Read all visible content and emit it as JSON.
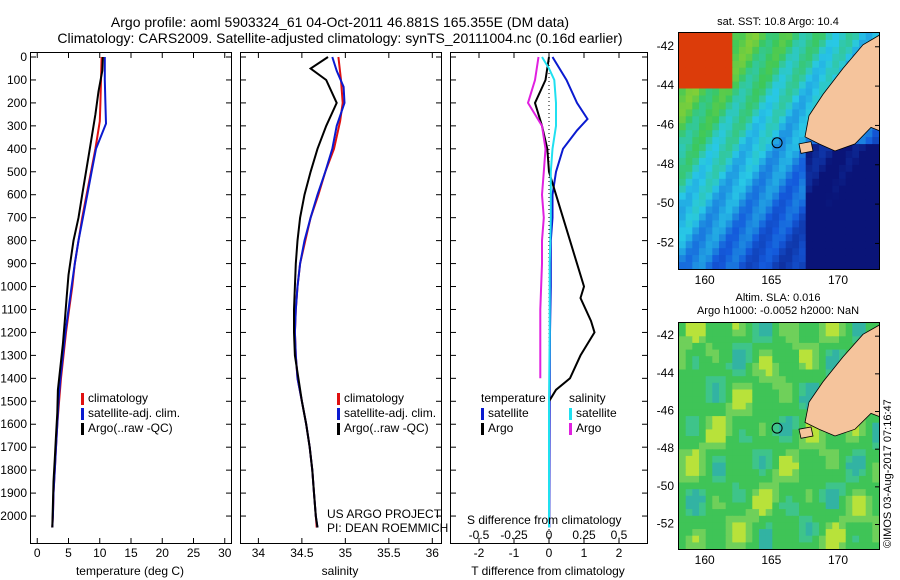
{
  "title": {
    "line1": "Argo profile: aoml 5903324_61 04-Oct-2011 46.881S 165.355E (DM data)",
    "line2": "Climatology: CARS2009. Satellite-adjusted climatology: synTS_20111004.nc (0.16d earlier)"
  },
  "colors": {
    "climatology": "#e01010",
    "satellite": "#0a1ad0",
    "argo": "#000000",
    "salinity_sat": "#20e0f0",
    "salinity_argo": "#e020e0"
  },
  "chart_data": [
    {
      "type": "line",
      "xlabel": "temperature (deg C)",
      "ylabel": "",
      "xlim": [
        -1,
        31
      ],
      "ylim": [
        2100,
        0
      ],
      "xticks": [
        0,
        5,
        10,
        15,
        20,
        25,
        30
      ],
      "yticks": [
        0,
        100,
        200,
        300,
        400,
        500,
        600,
        700,
        800,
        900,
        1000,
        1100,
        1200,
        1300,
        1400,
        1500,
        1600,
        1700,
        1800,
        1900,
        2000
      ],
      "legend": [
        "climatology",
        "satellite-adj. clim.",
        "Argo(..raw -QC)"
      ],
      "series": [
        {
          "name": "climatology",
          "color": "#e01010",
          "points": [
            [
              10.3,
              0
            ],
            [
              10.2,
              100
            ],
            [
              10.1,
              200
            ],
            [
              10.0,
              280
            ],
            [
              9.3,
              400
            ],
            [
              8.6,
              500
            ],
            [
              7.9,
              600
            ],
            [
              7.2,
              700
            ],
            [
              6.6,
              800
            ],
            [
              6.0,
              900
            ],
            [
              5.6,
              1000
            ],
            [
              5.1,
              1100
            ],
            [
              4.6,
              1200
            ],
            [
              4.2,
              1300
            ],
            [
              3.8,
              1400
            ],
            [
              3.5,
              1500
            ],
            [
              3.2,
              1600
            ],
            [
              3.0,
              1700
            ],
            [
              2.8,
              1800
            ],
            [
              2.6,
              1900
            ],
            [
              2.5,
              2000
            ],
            [
              2.4,
              2050
            ]
          ]
        },
        {
          "name": "satellite-adj. clim.",
          "color": "#0a1ad0",
          "points": [
            [
              10.8,
              0
            ],
            [
              10.8,
              100
            ],
            [
              10.9,
              200
            ],
            [
              11.0,
              290
            ],
            [
              9.4,
              400
            ],
            [
              8.7,
              500
            ],
            [
              8.0,
              600
            ],
            [
              7.3,
              700
            ],
            [
              6.6,
              800
            ],
            [
              6.0,
              900
            ],
            [
              5.5,
              1000
            ],
            [
              5.0,
              1100
            ],
            [
              4.5,
              1200
            ],
            [
              4.1,
              1300
            ],
            [
              3.7,
              1400
            ],
            [
              3.4,
              1500
            ],
            [
              3.2,
              1600
            ],
            [
              3.0,
              1700
            ],
            [
              2.8,
              1800
            ],
            [
              2.6,
              1900
            ],
            [
              2.5,
              2000
            ],
            [
              2.4,
              2050
            ]
          ]
        },
        {
          "name": "Argo(..raw -QC)",
          "color": "#000000",
          "points": [
            [
              10.5,
              0
            ],
            [
              10.4,
              60
            ],
            [
              9.8,
              150
            ],
            [
              9.3,
              250
            ],
            [
              8.4,
              400
            ],
            [
              7.8,
              500
            ],
            [
              7.2,
              600
            ],
            [
              6.6,
              700
            ],
            [
              5.8,
              800
            ],
            [
              5.0,
              950
            ],
            [
              4.7,
              1050
            ],
            [
              4.4,
              1150
            ],
            [
              4.1,
              1250
            ],
            [
              3.7,
              1350
            ],
            [
              3.3,
              1450
            ],
            [
              3.2,
              1550
            ],
            [
              3.0,
              1650
            ],
            [
              2.8,
              1750
            ],
            [
              2.6,
              1850
            ],
            [
              2.5,
              1950
            ],
            [
              2.4,
              2050
            ]
          ]
        }
      ]
    },
    {
      "type": "line",
      "xlabel": "salinity",
      "ylabel": "",
      "xlim": [
        33.8,
        36.1
      ],
      "ylim": [
        2100,
        0
      ],
      "xticks": [
        34,
        34.5,
        35,
        35.5,
        36
      ],
      "legend": [
        "climatology",
        "satellite-adj. clim.",
        "Argo(..raw -QC)"
      ],
      "series": [
        {
          "name": "climatology",
          "color": "#e01010",
          "points": [
            [
              34.92,
              0
            ],
            [
              34.95,
              100
            ],
            [
              34.97,
              200
            ],
            [
              34.94,
              280
            ],
            [
              34.87,
              400
            ],
            [
              34.77,
              500
            ],
            [
              34.69,
              600
            ],
            [
              34.6,
              700
            ],
            [
              34.54,
              800
            ],
            [
              34.48,
              900
            ],
            [
              34.45,
              1000
            ],
            [
              34.43,
              1100
            ],
            [
              34.42,
              1200
            ],
            [
              34.43,
              1300
            ],
            [
              34.45,
              1400
            ],
            [
              34.5,
              1500
            ],
            [
              34.55,
              1600
            ],
            [
              34.59,
              1700
            ],
            [
              34.62,
              1800
            ],
            [
              34.64,
              1900
            ],
            [
              34.66,
              2000
            ],
            [
              34.67,
              2050
            ]
          ]
        },
        {
          "name": "satellite-adj. clim.",
          "color": "#0a1ad0",
          "points": [
            [
              34.85,
              0
            ],
            [
              34.9,
              60
            ],
            [
              34.98,
              130
            ],
            [
              34.99,
              200
            ],
            [
              34.9,
              300
            ],
            [
              34.85,
              400
            ],
            [
              34.77,
              500
            ],
            [
              34.68,
              600
            ],
            [
              34.6,
              700
            ],
            [
              34.53,
              800
            ],
            [
              34.48,
              900
            ],
            [
              34.45,
              1000
            ],
            [
              34.43,
              1100
            ],
            [
              34.42,
              1200
            ],
            [
              34.43,
              1300
            ],
            [
              34.45,
              1400
            ],
            [
              34.5,
              1500
            ],
            [
              34.55,
              1600
            ],
            [
              34.59,
              1700
            ],
            [
              34.62,
              1800
            ],
            [
              34.64,
              1900
            ],
            [
              34.66,
              2000
            ],
            [
              34.68,
              2050
            ]
          ]
        },
        {
          "name": "Argo(..raw -QC)",
          "color": "#000000",
          "points": [
            [
              34.8,
              0
            ],
            [
              34.6,
              50
            ],
            [
              34.78,
              100
            ],
            [
              34.9,
              200
            ],
            [
              34.78,
              300
            ],
            [
              34.68,
              400
            ],
            [
              34.6,
              500
            ],
            [
              34.53,
              600
            ],
            [
              34.48,
              700
            ],
            [
              34.45,
              800
            ],
            [
              34.43,
              900
            ],
            [
              34.42,
              1000
            ],
            [
              34.41,
              1100
            ],
            [
              34.41,
              1200
            ],
            [
              34.42,
              1300
            ],
            [
              34.46,
              1400
            ],
            [
              34.5,
              1500
            ],
            [
              34.55,
              1600
            ],
            [
              34.59,
              1700
            ],
            [
              34.62,
              1800
            ],
            [
              34.64,
              1900
            ],
            [
              34.66,
              2000
            ],
            [
              34.68,
              2050
            ]
          ]
        }
      ]
    },
    {
      "type": "line",
      "xlabel": "T difference from climatology",
      "top_axis_label": "S difference from climatology",
      "xlim": [
        -2.8,
        2.8
      ],
      "ylim": [
        2100,
        0
      ],
      "xticks": [
        -2,
        -1,
        0,
        1,
        2
      ],
      "top_ticks": [
        "-0.5",
        "-0.25",
        "0",
        "0.25",
        "0.5"
      ],
      "legend_groups": {
        "temperature": [
          "satellite",
          "Argo"
        ],
        "salinity": [
          "satellite",
          "Argo"
        ]
      },
      "series": [
        {
          "name": "satellite",
          "group": "temperature",
          "color": "#0a1ad0",
          "points": [
            [
              0.1,
              0
            ],
            [
              0.3,
              50
            ],
            [
              0.5,
              100
            ],
            [
              0.8,
              200
            ],
            [
              1.1,
              270
            ],
            [
              0.8,
              320
            ],
            [
              0.4,
              400
            ],
            [
              0.2,
              500
            ],
            [
              0.1,
              600
            ],
            [
              0.1,
              700
            ],
            [
              0.05,
              800
            ],
            [
              0.05,
              1000
            ],
            [
              0.03,
              1200
            ],
            [
              0.02,
              1500
            ],
            [
              0.01,
              2050
            ]
          ]
        },
        {
          "name": "Argo",
          "group": "temperature",
          "color": "#000000",
          "points": [
            [
              0.0,
              0
            ],
            [
              -0.1,
              100
            ],
            [
              -0.4,
              200
            ],
            [
              -0.2,
              300
            ],
            [
              -0.05,
              400
            ],
            [
              0.0,
              500
            ],
            [
              0.2,
              600
            ],
            [
              0.6,
              800
            ],
            [
              0.8,
              900
            ],
            [
              1.0,
              1000
            ],
            [
              0.9,
              1050
            ],
            [
              1.2,
              1150
            ],
            [
              1.3,
              1200
            ],
            [
              0.9,
              1300
            ],
            [
              0.6,
              1400
            ],
            [
              0.2,
              1450
            ],
            [
              0.0,
              1500
            ],
            [
              0.0,
              2050
            ]
          ]
        },
        {
          "name": "satellite",
          "group": "salinity",
          "color": "#20e0f0",
          "points": [
            [
              -0.2,
              0
            ],
            [
              0.0,
              50
            ],
            [
              0.15,
              100
            ],
            [
              0.2,
              200
            ],
            [
              0.2,
              300
            ],
            [
              0.1,
              400
            ],
            [
              0.05,
              500
            ],
            [
              0.05,
              700
            ],
            [
              0.02,
              900
            ],
            [
              0.02,
              1200
            ],
            [
              0.0,
              1500
            ],
            [
              0.0,
              2050
            ]
          ]
        },
        {
          "name": "Argo",
          "group": "salinity",
          "color": "#e020e0",
          "points": [
            [
              -0.3,
              0
            ],
            [
              -0.4,
              100
            ],
            [
              -0.6,
              200
            ],
            [
              -0.2,
              300
            ],
            [
              -0.1,
              400
            ],
            [
              -0.15,
              500
            ],
            [
              -0.2,
              600
            ],
            [
              -0.15,
              700
            ],
            [
              -0.2,
              800
            ],
            [
              -0.2,
              900
            ],
            [
              -0.25,
              1100
            ],
            [
              -0.25,
              1300
            ],
            [
              -0.25,
              1400
            ]
          ]
        }
      ]
    }
  ],
  "annotations": {
    "project": "US ARGO PROJECT",
    "pi": "PI: DEAN ROEMMICH",
    "stamp": "©IMOS 03-Aug-2017 07:16:47"
  },
  "maps": {
    "sst": {
      "title": "sat. SST: 10.8 Argo: 10.4",
      "lat_ticks": [
        "-42",
        "-44",
        "-46",
        "-48",
        "-50",
        "-52"
      ],
      "lon_ticks": [
        "160",
        "165",
        "170"
      ],
      "argo_position": [
        165.355,
        -46.881
      ],
      "lon_range": [
        158,
        173
      ],
      "lat_range": [
        -53.3,
        -41.3
      ]
    },
    "sla": {
      "title1": "Altim. SLA: 0.016",
      "title2": "Argo h1000: -0.0052 h2000: NaN",
      "lat_ticks": [
        "-42",
        "-44",
        "-46",
        "-48",
        "-50",
        "-52"
      ],
      "lon_ticks": [
        "160",
        "165",
        "170"
      ],
      "argo_position": [
        165.355,
        -46.881
      ],
      "lon_range": [
        158,
        173
      ],
      "lat_range": [
        -53.3,
        -41.3
      ]
    }
  }
}
